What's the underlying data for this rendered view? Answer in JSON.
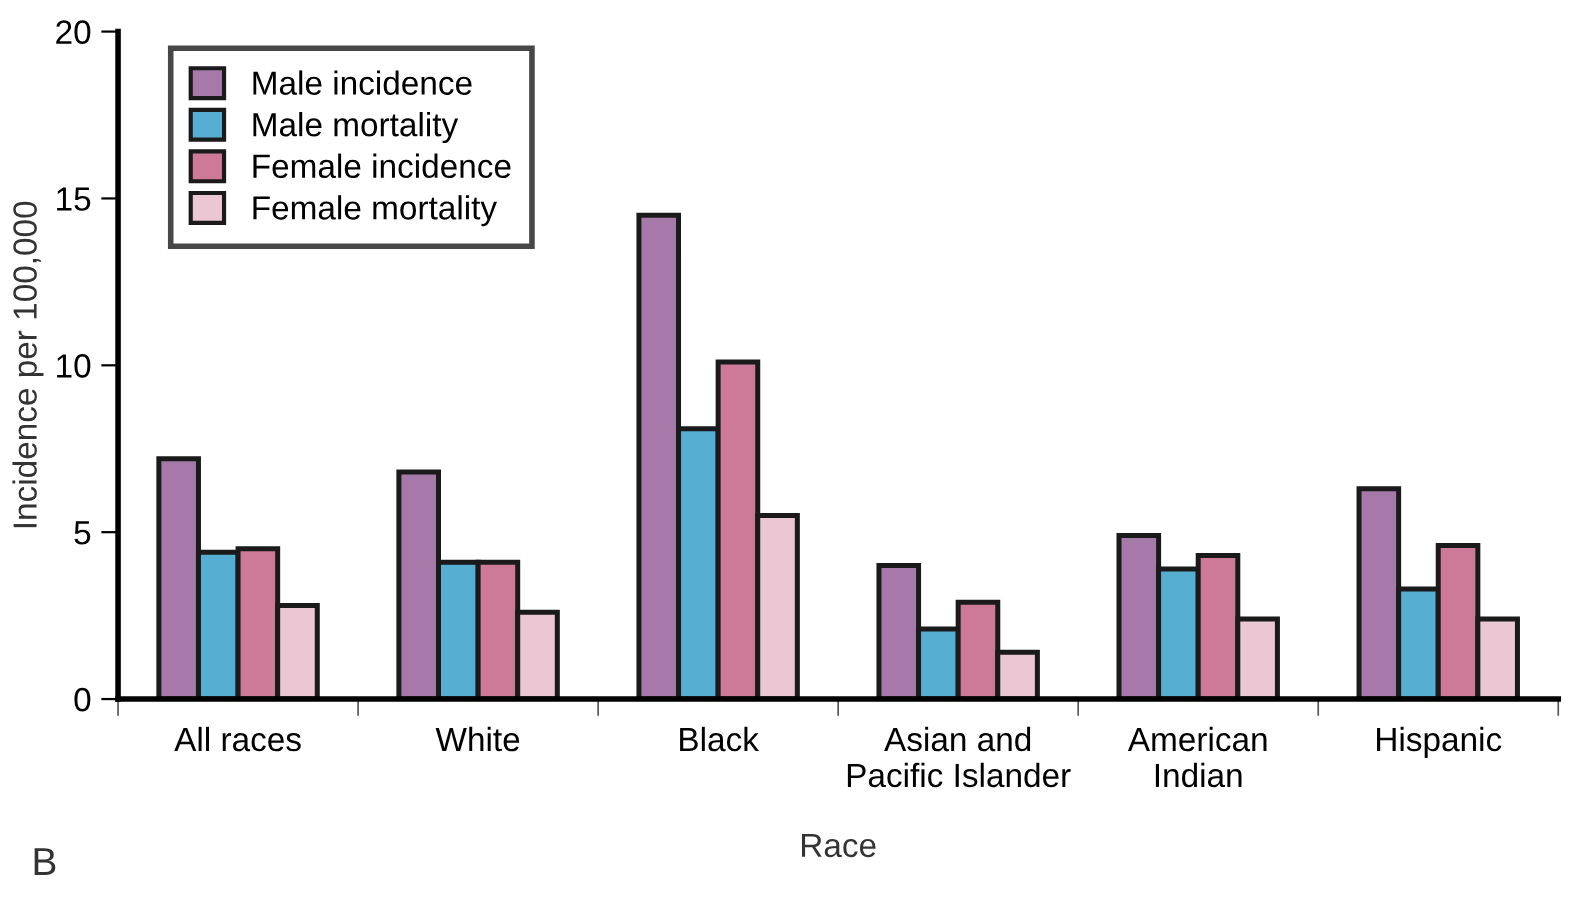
{
  "chart_data": {
    "type": "bar",
    "xlabel": "Race",
    "ylabel": "Incidence per 100,000",
    "categories": [
      "All races",
      "White",
      "Black",
      "Asian and\nPacific Islander",
      "American\nIndian",
      "Hispanic"
    ],
    "series": [
      {
        "name": "Male incidence",
        "color": "#a57aa8",
        "values": [
          7.2,
          6.8,
          14.5,
          4.0,
          4.9,
          6.3
        ]
      },
      {
        "name": "Male mortality",
        "color": "#56afd3",
        "values": [
          4.4,
          4.1,
          8.1,
          2.1,
          3.9,
          3.3
        ]
      },
      {
        "name": "Female incidence",
        "color": "#cc7a98",
        "values": [
          4.5,
          4.1,
          10.1,
          2.9,
          4.3,
          4.6
        ]
      },
      {
        "name": "Female mortality",
        "color": "#ebc6d3",
        "values": [
          2.8,
          2.6,
          5.5,
          1.4,
          2.4,
          2.4
        ]
      }
    ],
    "ylim": [
      0,
      20
    ],
    "yticks": [
      0,
      5,
      10,
      15,
      20
    ],
    "grid": false,
    "legend": "top left",
    "annotations": [
      "B"
    ]
  }
}
